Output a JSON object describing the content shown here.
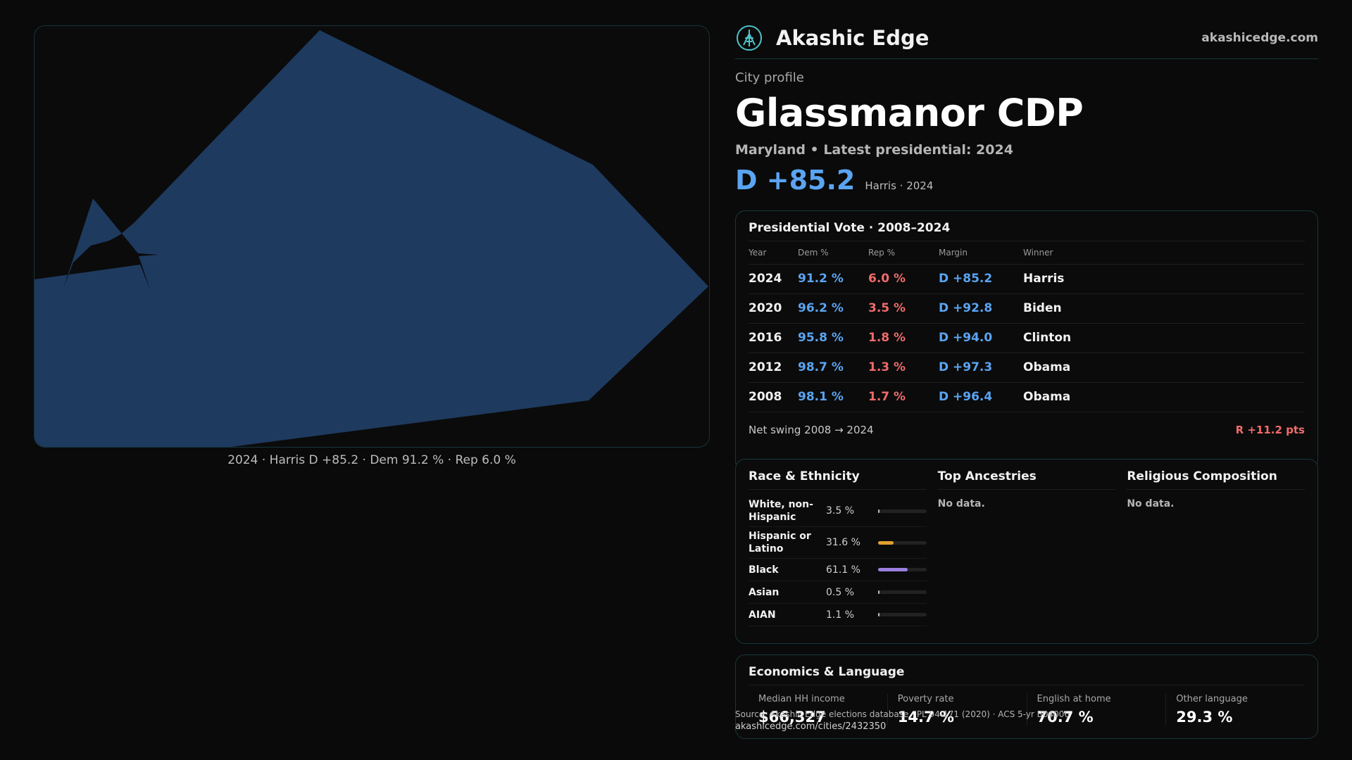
{
  "brand": {
    "name": "Akashic Edge",
    "url": "akashicedge.com",
    "logo_icon": "compass-tree-icon"
  },
  "profile": {
    "kicker": "City profile",
    "city": "Glassmanor CDP",
    "subtitle": "Maryland • Latest presidential: 2024",
    "margin": "D +85.2",
    "margin_note": "Harris · 2024"
  },
  "map": {
    "caption": "2024 · Harris D +85.2 · Dem 91.2 % · Rep 6.0 %",
    "fill_color": "#1e3a5f"
  },
  "presidential": {
    "title": "Presidential Vote · 2008–2024",
    "headers": [
      "Year",
      "Dem %",
      "Rep %",
      "Margin",
      "Winner"
    ],
    "rows": [
      {
        "year": "2024",
        "dem": "91.2 %",
        "rep": "6.0 %",
        "margin": "D +85.2",
        "winner": "Harris"
      },
      {
        "year": "2020",
        "dem": "96.2 %",
        "rep": "3.5 %",
        "margin": "D +92.8",
        "winner": "Biden"
      },
      {
        "year": "2016",
        "dem": "95.8 %",
        "rep": "1.8 %",
        "margin": "D +94.0",
        "winner": "Clinton"
      },
      {
        "year": "2012",
        "dem": "98.7 %",
        "rep": "1.3 %",
        "margin": "D +97.3",
        "winner": "Obama"
      },
      {
        "year": "2008",
        "dem": "98.1 %",
        "rep": "1.7 %",
        "margin": "D +96.4",
        "winner": "Obama"
      }
    ],
    "swing_label": "Net swing 2008 → 2024",
    "swing_value": "R +11.2 pts"
  },
  "race": {
    "title": "Race & Ethnicity",
    "rows": [
      {
        "label": "White, non-Hispanic",
        "value": "3.5 %",
        "pct": 3.5,
        "color": "#bdbdbd"
      },
      {
        "label": "Hispanic or Latino",
        "value": "31.6 %",
        "pct": 31.6,
        "color": "#e0a030"
      },
      {
        "label": "Black",
        "value": "61.1 %",
        "pct": 61.1,
        "color": "#9b7fe0"
      },
      {
        "label": "Asian",
        "value": "0.5 %",
        "pct": 0.5,
        "color": "#bdbdbd"
      },
      {
        "label": "AIAN",
        "value": "1.1 %",
        "pct": 1.1,
        "color": "#bdbdbd"
      }
    ]
  },
  "ancestries": {
    "title": "Top Ancestries",
    "empty": "No data."
  },
  "religion": {
    "title": "Religious Composition",
    "empty": "No data."
  },
  "economics": {
    "title": "Economics & Language",
    "items": [
      {
        "label": "Median HH income",
        "value": "$66,327"
      },
      {
        "label": "Poverty rate",
        "value": "14.7 %"
      },
      {
        "label": "English at home",
        "value": "70.7 %"
      },
      {
        "label": "Other language",
        "value": "29.3 %"
      }
    ]
  },
  "source": {
    "text": "Source: Akashic Edge elections database · PL 94-171 (2020) · ACS 5-yr B04006",
    "url": "akashicedge.com/cities/2432350"
  }
}
